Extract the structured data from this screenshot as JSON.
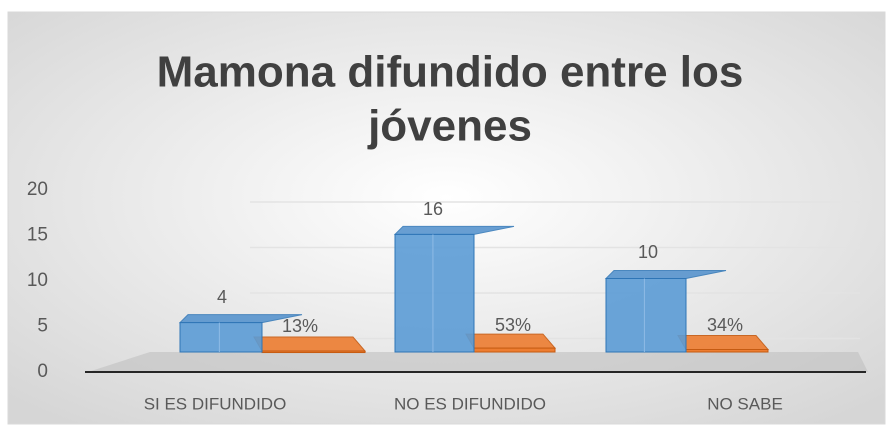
{
  "chart_data": {
    "type": "bar3d",
    "title_lines": [
      "Mamona difundido entre los",
      "jóvenes"
    ],
    "categories": [
      "SI ES DIFUNDIDO",
      "NO ES DIFUNDIDO",
      "NO SABE"
    ],
    "series": [
      {
        "color": "#5b9bd5",
        "values": [
          4,
          16,
          10
        ],
        "value_labels": [
          "4",
          "16",
          "10"
        ]
      },
      {
        "color": "#ed7d31",
        "values": [
          0.13,
          0.53,
          0.34
        ],
        "value_labels": [
          "13%",
          "53%",
          "34%"
        ]
      }
    ],
    "ylim": [
      0,
      20
    ],
    "yticks": [
      0,
      5,
      10,
      15,
      20
    ],
    "grid": true
  }
}
